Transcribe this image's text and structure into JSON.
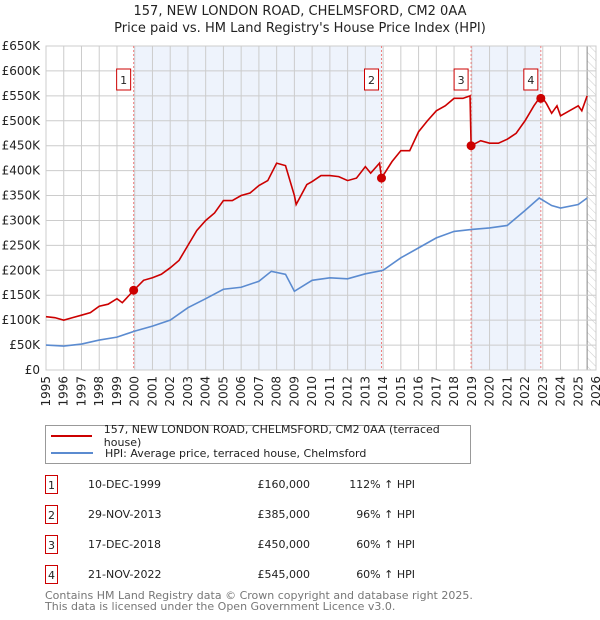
{
  "chart_data": {
    "type": "line",
    "title": "157, NEW LONDON ROAD, CHELMSFORD, CM2 0AA",
    "subtitle": "Price paid vs. HM Land Registry's House Price Index (HPI)",
    "xlim": [
      1995,
      2026
    ],
    "ylim": [
      0,
      650000
    ],
    "x_ticks": [
      "1995",
      "1996",
      "1997",
      "1998",
      "1999",
      "2000",
      "2001",
      "2002",
      "2003",
      "2004",
      "2005",
      "2006",
      "2007",
      "2008",
      "2009",
      "2010",
      "2011",
      "2012",
      "2013",
      "2014",
      "2015",
      "2016",
      "2017",
      "2018",
      "2019",
      "2020",
      "2021",
      "2022",
      "2023",
      "2024",
      "2025",
      "2026"
    ],
    "y_ticks": [
      "£0",
      "£50K",
      "£100K",
      "£150K",
      "£200K",
      "£250K",
      "£300K",
      "£350K",
      "£400K",
      "£450K",
      "£500K",
      "£550K",
      "£600K",
      "£650K"
    ],
    "grid": true,
    "series": [
      {
        "name": "157, NEW LONDON ROAD, CHELMSFORD, CM2 0AA (terraced house)",
        "color": "#cc0000",
        "x": [
          1995,
          1995.5,
          1996,
          1996.5,
          1997,
          1997.5,
          1998,
          1998.5,
          1999,
          1999.3,
          1999.95,
          2000.5,
          2001,
          2001.5,
          2002,
          2002.5,
          2003,
          2003.5,
          2004,
          2004.5,
          2005,
          2005.5,
          2006,
          2006.5,
          2007,
          2007.5,
          2008,
          2008.5,
          2009,
          2009.1,
          2009.7,
          2010,
          2010.5,
          2011,
          2011.5,
          2012,
          2012.5,
          2013,
          2013.3,
          2013.8,
          2013.91,
          2014.5,
          2015,
          2015.5,
          2016,
          2016.5,
          2017,
          2017.5,
          2018,
          2018.5,
          2018.9,
          2018.96,
          2019.5,
          2020,
          2020.5,
          2021,
          2021.5,
          2022,
          2022.5,
          2022.9,
          2023.2,
          2023.5,
          2023.8,
          2024,
          2024.5,
          2025,
          2025.2,
          2025.5
        ],
        "y": [
          107000,
          105000,
          100000,
          105000,
          110000,
          115000,
          128000,
          132000,
          143000,
          135000,
          160000,
          180000,
          185000,
          192000,
          205000,
          220000,
          250000,
          280000,
          300000,
          315000,
          340000,
          340000,
          350000,
          355000,
          370000,
          380000,
          415000,
          410000,
          350000,
          332000,
          372000,
          378000,
          390000,
          390000,
          388000,
          380000,
          385000,
          408000,
          395000,
          415000,
          385000,
          418000,
          440000,
          440000,
          478000,
          500000,
          520000,
          530000,
          545000,
          545000,
          550000,
          450000,
          460000,
          455000,
          455000,
          463000,
          475000,
          500000,
          530000,
          550000,
          535000,
          515000,
          530000,
          510000,
          520000,
          530000,
          520000,
          550000
        ]
      },
      {
        "name": "HPI: Average price, terraced house, Chelmsford",
        "color": "#5b8bd0",
        "x": [
          1995,
          1996,
          1997,
          1998,
          1999,
          2000,
          2001,
          2002,
          2003,
          2004,
          2005,
          2006,
          2007,
          2007.7,
          2008.5,
          2009,
          2010,
          2011,
          2012,
          2013,
          2014,
          2015,
          2016,
          2017,
          2018,
          2019,
          2020,
          2021,
          2022,
          2022.8,
          2023.5,
          2024,
          2025,
          2025.5
        ],
        "y": [
          50000,
          48000,
          52000,
          60000,
          66000,
          78000,
          88000,
          100000,
          125000,
          143000,
          162000,
          166000,
          178000,
          198000,
          192000,
          158000,
          180000,
          185000,
          183000,
          193000,
          200000,
          225000,
          245000,
          265000,
          278000,
          282000,
          285000,
          290000,
          320000,
          345000,
          330000,
          325000,
          332000,
          345000
        ]
      }
    ],
    "sales": [
      {
        "num": "1",
        "x": 1999.94,
        "y": 160000,
        "date": "10-DEC-1999",
        "price": "£160,000",
        "hpi": "112% ↑ HPI"
      },
      {
        "num": "2",
        "x": 2013.91,
        "y": 385000,
        "date": "29-NOV-2013",
        "price": "£385,000",
        "hpi": "96% ↑ HPI"
      },
      {
        "num": "3",
        "x": 2018.96,
        "y": 450000,
        "date": "17-DEC-2018",
        "price": "£450,000",
        "hpi": "60% ↑ HPI"
      },
      {
        "num": "4",
        "x": 2022.89,
        "y": 545000,
        "date": "21-NOV-2022",
        "price": "£545,000",
        "hpi": "60% ↑ HPI"
      }
    ],
    "forecast_start": 2025.5,
    "legend_position": "below"
  },
  "footer": [
    "Contains HM Land Registry data © Crown copyright and database right 2025.",
    "This data is licensed under the Open Government Licence v3.0."
  ]
}
